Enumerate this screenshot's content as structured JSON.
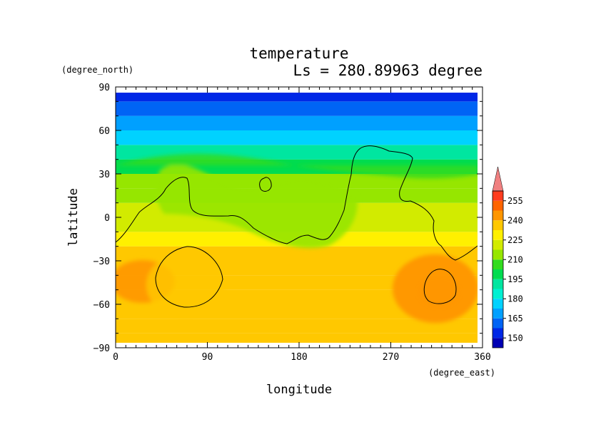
{
  "chart_data": {
    "type": "heatmap",
    "title": "temperature",
    "subtitle": "Ls = 280.89963 degree",
    "xlabel": "longitude",
    "ylabel": "latitude",
    "x_units": "(degree_east)",
    "y_units": "(degree_north)",
    "xlim": [
      0,
      360
    ],
    "ylim": [
      -90,
      90
    ],
    "x_ticks": [
      "0",
      "90",
      "180",
      "270",
      "360"
    ],
    "y_ticks": [
      "90",
      "60",
      "30",
      "0",
      "−30",
      "−60",
      "−90"
    ],
    "x_tick_values": [
      0,
      90,
      180,
      270,
      360
    ],
    "y_tick_values": [
      90,
      60,
      30,
      0,
      -30,
      -60,
      -90
    ],
    "colorbar": {
      "levels": [
        142.5,
        150,
        157.5,
        165,
        172.5,
        180,
        187.5,
        195,
        202.5,
        210,
        217.5,
        225,
        232.5,
        240,
        247.5,
        255,
        262.5
      ],
      "tick_labels": [
        "150",
        "165",
        "180",
        "195",
        "210",
        "225",
        "240",
        "255"
      ],
      "tick_values": [
        150,
        165,
        180,
        195,
        210,
        225,
        240,
        255
      ],
      "colors": [
        "#0000b4",
        "#0028e6",
        "#0064f5",
        "#00a0ff",
        "#00d2ff",
        "#00f0d2",
        "#00e6a0",
        "#00dc50",
        "#32dc1e",
        "#96e600",
        "#d2eb00",
        "#fff000",
        "#ffc800",
        "#ff9600",
        "#ff6400",
        "#ff3c1e",
        "#f05050",
        "#f08080"
      ],
      "extend": "max"
    },
    "latitudes": [
      -85,
      -75,
      -65,
      -55,
      -45,
      -35,
      -25,
      -15,
      -5,
      5,
      15,
      25,
      35,
      45,
      55,
      65,
      75,
      85
    ],
    "zonal_mean_temperature": [
      230,
      230,
      229,
      228,
      231,
      229,
      226,
      220,
      214,
      210,
      208,
      203,
      193,
      183,
      172,
      160,
      150,
      145
    ],
    "contour_value": 225
  }
}
